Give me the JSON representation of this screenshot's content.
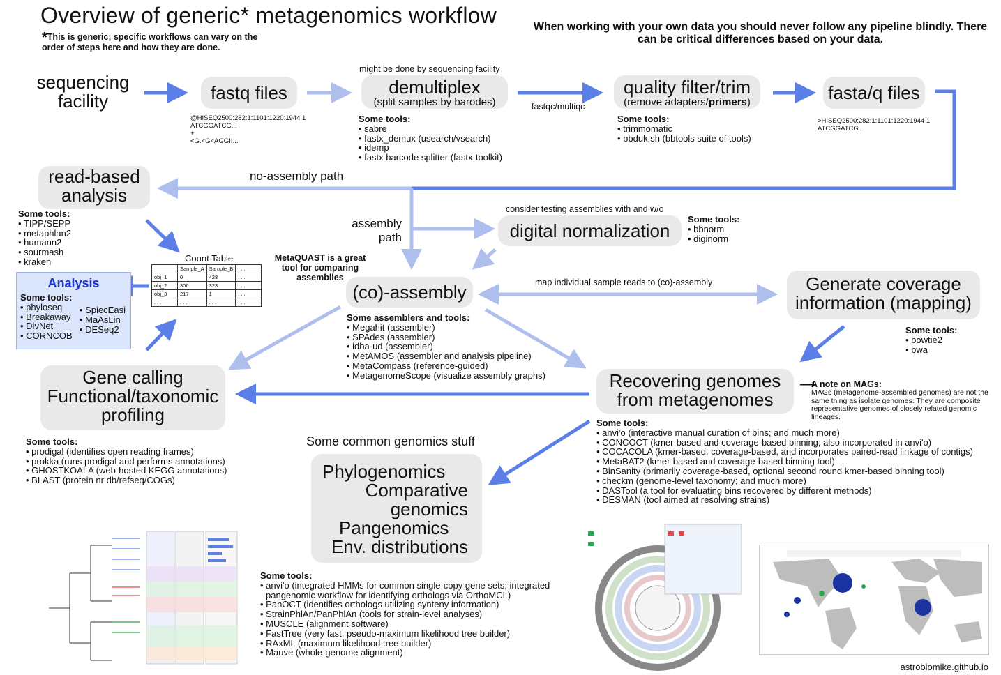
{
  "title": "Overview of generic* metagenomics workflow",
  "note": {
    "star": "*",
    "text": "This is generic; specific workflows can vary on the order of steps here and how they are done."
  },
  "warning": "When working with your own data you should never follow any pipeline blindly. There can be critical differences based on your data.",
  "nodes": {
    "sequencing": "sequencing facility",
    "fastq": "fastq files",
    "demultiplex": "demultiplex",
    "demultiplex_sub": "(split samples by barodes)",
    "demultiplex_note": "might be done by sequencing facility",
    "qc_label": "fastqc/multiqc",
    "quality": "quality filter/trim",
    "quality_sub_a": "(remove adapters/",
    "quality_sub_b": "primers",
    "quality_sub_c": ")",
    "fastaq": "fasta/q files",
    "readbased": "read-based analysis",
    "noassembly": "no-assembly path",
    "assemblypath": "assembly path",
    "digital": "digital normalization",
    "digital_note": "consider testing assemblies with and w/o",
    "coassembly": "(co)-assembly",
    "metaquast": "MetaQUAST is a great tool for comparing assemblies",
    "map_label": "map individual sample reads to (co)-assembly",
    "coverage": "Generate coverage information (mapping)",
    "recovering": "Recovering genomes from metagenomes",
    "genecalling": "Gene calling Functional/taxonomic profiling",
    "common": "Some common genomics stuff",
    "phylo": [
      "Phylogenomics",
      "Comparative",
      "genomics",
      "Pangenomics",
      "Env. distributions"
    ]
  },
  "fastq_example": [
    "@HISEQ2500:282:1:1101:1220:1944 1",
    "ATCGGATCG...",
    "+",
    "<G.<G<AGGII..."
  ],
  "fasta_example": [
    ">HISEQ2500:282:1:1101:1220:1944 1",
    "ATCGGATCG..."
  ],
  "tools": {
    "demux": {
      "header": "Some tools:",
      "items": [
        "• sabre",
        "• fastx_demux (usearch/vsearch)",
        "• idemp",
        "• fastx barcode splitter (fastx-toolkit)"
      ]
    },
    "quality": {
      "header": "Some tools:",
      "items": [
        "• trimmomatic",
        "• bbduk.sh (bbtools suite of tools)"
      ]
    },
    "readbased": {
      "header": "Some tools:",
      "items": [
        "• TIPP/SEPP",
        "• metaphlan2",
        "• humann2",
        "• sourmash",
        "• kraken"
      ]
    },
    "digital": {
      "header": "Some tools:",
      "items": [
        "• bbnorm",
        "• diginorm"
      ]
    },
    "assembly": {
      "header": "Some assemblers and tools:",
      "items": [
        "• Megahit (assembler)",
        "• SPAdes (assembler)",
        "• idba-ud (assembler)",
        "• MetAMOS (assembler and analysis pipeline)",
        "• MetaCompass (reference-guided)",
        "• MetagenomeScope (visualize assembly graphs)"
      ]
    },
    "coverage": {
      "header": "Some tools:",
      "items": [
        "• bowtie2",
        "• bwa"
      ]
    },
    "genecalling": {
      "header": "Some tools:",
      "items": [
        "• prodigal (identifies open reading frames)",
        "• prokka (runs prodigal and performs annotations)",
        "• GHOSTKOALA (web-hosted KEGG annotations)",
        "• BLAST (protein nr db/refseq/COGs)"
      ]
    },
    "recovering": {
      "header": "Some tools:",
      "items": [
        "• anvi'o (interactive manual curation of bins; and much more)",
        "• CONCOCT (kmer-based and coverage-based binning; also incorporated in anvi'o)",
        "• COCACOLA (kmer-based, coverage-based, and incorporates paired-read linkage of contigs)",
        "• MetaBAT2 (kmer-based and coverage-based binning tool)",
        "• BinSanity (primarily coverage-based, optional second round kmer-based binning tool)",
        "• checkm (genome-level taxonomy; and much more)",
        "• DASTool (a tool for evaluating bins recovered by different methods)",
        "• DESMAN (tool aimed at resolving strains)"
      ]
    },
    "genomics": {
      "header": "Some tools:",
      "items": [
        "• anvi'o (integrated HMMs for common single-copy gene sets; integrated",
        "  pangenomic workflow for identifying orthologs via OrthoMCL)",
        "• PanOCT (identifies orthologs utilizing synteny information)",
        "• StrainPhlAn/PanPhlAn (tools for strain-level analyses)",
        "• MUSCLE (alignment software)",
        "• FastTree (very fast, pseudo-maximum likelihood tree builder)",
        "• RAxML (maximum likelihood tree builder)",
        "• Mauve (whole-genome alignment)"
      ]
    }
  },
  "analysis": {
    "title": "Analysis",
    "header": "Some tools:",
    "col1": [
      "• phyloseq",
      "• Breakaway",
      "• DivNet",
      "• CORNCOB"
    ],
    "col2": [
      "• SpiecEasi",
      "• MaAsLin",
      "• DESeq2"
    ]
  },
  "count_table": {
    "title": "Count Table",
    "header": [
      "",
      "Sample_A",
      "Sample_B",
      ". . ."
    ],
    "rows": [
      [
        "obj_1",
        "0",
        "428",
        ". . ."
      ],
      [
        "obj_2",
        "306",
        "323",
        ". . ."
      ],
      [
        "obj_3",
        "217",
        "1",
        ". . ."
      ],
      [
        ". . .",
        ". . .",
        ". . .",
        ". . ."
      ]
    ]
  },
  "mags_note": {
    "arrow": "⟶",
    "title": "A note on MAGs:",
    "text": "MAGs (metagenome-assembled genomes) are not the same thing as isolate genomes. They are composite representative genomes of closely related genomic lineages."
  },
  "credit": "astrobiomike.github.io",
  "colors": {
    "arrow_dark": "#5b7fe6",
    "arrow_light": "#aebfee",
    "node_bg": "#e9e9e9",
    "analysis_bg": "#dbe5fb",
    "analysis_title": "#1a33c9"
  }
}
